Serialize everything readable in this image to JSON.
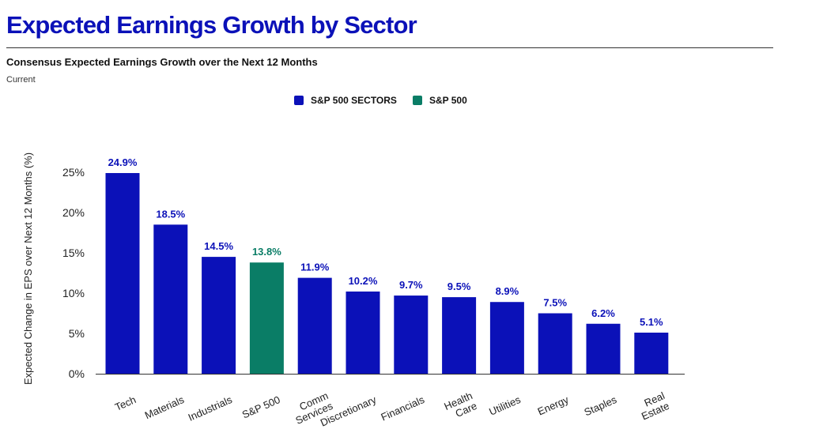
{
  "header": {
    "title": "Expected Earnings Growth by Sector",
    "subtitle": "Consensus Expected Earnings Growth over the Next 12 Months",
    "caption": "Current"
  },
  "colors": {
    "sectors": "#0b11b8",
    "sp500": "#0a7d66",
    "title": "#0b11b8"
  },
  "chart_data": {
    "type": "bar",
    "title": "Consensus Expected Earnings Growth over the Next 12 Months",
    "subtitle": "Current",
    "ylabel": "Expected Change in EPS over Next 12 Months (%)",
    "xlabel": "",
    "ylim": [
      0,
      25
    ],
    "yticks": [
      "0%",
      "5%",
      "10%",
      "15%",
      "20%",
      "25%"
    ],
    "ytick_values": [
      0,
      5,
      10,
      15,
      20,
      25
    ],
    "grid": false,
    "legend_position": "top-center",
    "legend": [
      {
        "name": "S&P 500 SECTORS",
        "color": "#0b11b8"
      },
      {
        "name": "S&P 500",
        "color": "#0a7d66"
      }
    ],
    "categories": [
      [
        "Tech"
      ],
      [
        "Materials"
      ],
      [
        "Industrials"
      ],
      [
        "S&P 500"
      ],
      [
        "Comm",
        "Services"
      ],
      [
        "Discretionary"
      ],
      [
        "Financials"
      ],
      [
        "Health",
        "Care"
      ],
      [
        "Utilities"
      ],
      [
        "Energy"
      ],
      [
        "Staples"
      ],
      [
        "Real",
        "Estate"
      ]
    ],
    "values": [
      24.9,
      18.5,
      14.5,
      13.8,
      11.9,
      10.2,
      9.7,
      9.5,
      8.9,
      7.5,
      6.2,
      5.1
    ],
    "value_labels": [
      "24.9%",
      "18.5%",
      "14.5%",
      "13.8%",
      "11.9%",
      "10.2%",
      "9.7%",
      "9.5%",
      "8.9%",
      "7.5%",
      "6.2%",
      "5.1%"
    ],
    "series_index": [
      0,
      0,
      0,
      1,
      0,
      0,
      0,
      0,
      0,
      0,
      0,
      0
    ]
  }
}
